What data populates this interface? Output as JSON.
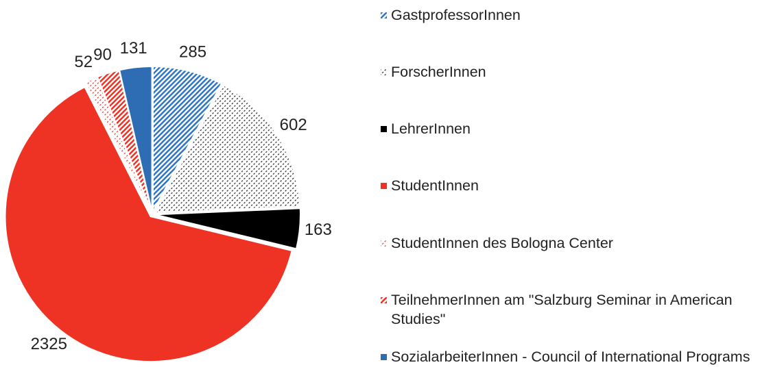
{
  "chart_data": {
    "type": "pie",
    "categories": [
      "GastprofessorInnen",
      "ForscherInnen",
      "LehrerInnen",
      "StudentInnen",
      "StudentInnen des Bologna Center",
      "TeilnehmerInnen am \"Salzburg Seminar in American Studies\"",
      "SozialarbeiterInnen - Council of International Programs"
    ],
    "values": [
      285,
      602,
      163,
      2325,
      52,
      90,
      131
    ],
    "colors": [
      "#2e75c4",
      "#222222",
      "#000000",
      "#ee3224",
      "#ee3224",
      "#ee3224",
      "#2e6db4"
    ],
    "patterns": [
      "stripes",
      "dots",
      "solid",
      "solid",
      "dots",
      "stripes",
      "solid"
    ],
    "legend": "right"
  }
}
